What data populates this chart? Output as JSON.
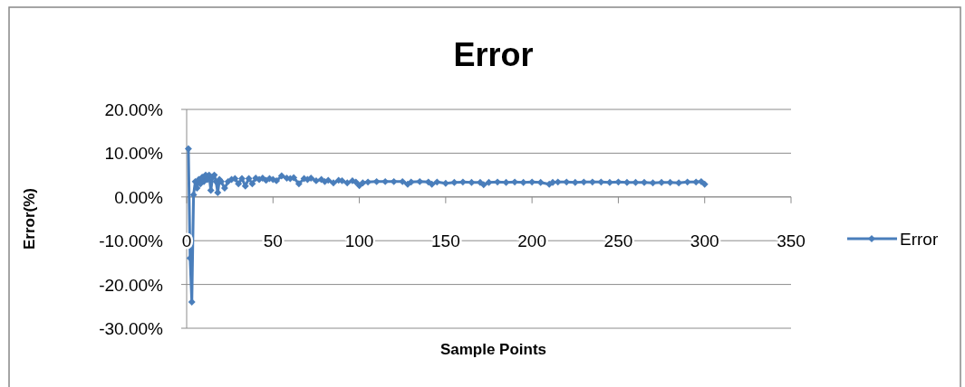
{
  "chart_data": {
    "type": "line",
    "title": "Error",
    "xlabel": "Sample Points",
    "ylabel": "Error(%)",
    "xlim": [
      0,
      350
    ],
    "xticks": [
      0,
      50,
      100,
      150,
      200,
      250,
      300,
      350
    ],
    "ylim": [
      -30,
      20
    ],
    "yticks": [
      {
        "value": -30,
        "label": "-30.00%"
      },
      {
        "value": -20,
        "label": "-20.00%"
      },
      {
        "value": -10,
        "label": "-10.00%"
      },
      {
        "value": 0,
        "label": "0.00%"
      },
      {
        "value": 10,
        "label": "10.00%"
      },
      {
        "value": 20,
        "label": "20.00%"
      }
    ],
    "grid": "y",
    "legend": "right",
    "marker": "diamond",
    "line_style": "solid",
    "series": [
      {
        "name": "Error",
        "color": "#4a7ebb",
        "x": [
          1,
          2,
          3,
          4,
          5,
          6,
          7,
          8,
          9,
          10,
          11,
          12,
          13,
          14,
          15,
          16,
          17,
          18,
          19,
          20,
          22,
          24,
          26,
          28,
          30,
          32,
          34,
          36,
          38,
          40,
          42,
          44,
          46,
          48,
          50,
          52,
          55,
          58,
          60,
          62,
          65,
          68,
          70,
          72,
          75,
          78,
          80,
          82,
          85,
          88,
          90,
          93,
          96,
          98,
          100,
          102,
          105,
          110,
          115,
          120,
          125,
          128,
          130,
          135,
          140,
          142,
          145,
          150,
          155,
          160,
          165,
          170,
          172,
          175,
          180,
          185,
          190,
          195,
          200,
          205,
          210,
          212,
          215,
          220,
          225,
          230,
          235,
          240,
          245,
          250,
          255,
          260,
          265,
          270,
          275,
          280,
          285,
          290,
          295,
          298,
          300
        ],
        "values": [
          11,
          -14,
          -24,
          0.5,
          3.5,
          2,
          4,
          3,
          4.5,
          3.5,
          5,
          4,
          5,
          1.5,
          4.5,
          5,
          3.5,
          1,
          4,
          3.5,
          2,
          3.5,
          4,
          4.2,
          3,
          4.2,
          2.5,
          4.2,
          3,
          4.3,
          4,
          4.3,
          3.8,
          4.2,
          4,
          3.7,
          4.8,
          4.3,
          4.2,
          4.4,
          3,
          4.2,
          4,
          4.3,
          3.7,
          4,
          3.5,
          3.8,
          3.2,
          3.8,
          3.7,
          3.2,
          3.7,
          3.4,
          2.6,
          3.2,
          3.4,
          3.5,
          3.5,
          3.5,
          3.5,
          2.9,
          3.4,
          3.5,
          3.4,
          2.9,
          3.4,
          3.1,
          3.3,
          3.4,
          3.3,
          3.3,
          2.8,
          3.3,
          3.4,
          3.3,
          3.4,
          3.3,
          3.4,
          3.3,
          2.9,
          3.3,
          3.4,
          3.4,
          3.3,
          3.4,
          3.4,
          3.4,
          3.3,
          3.4,
          3.3,
          3.3,
          3.3,
          3.2,
          3.3,
          3.3,
          3.2,
          3.4,
          3.4,
          3.5,
          2.9
        ]
      }
    ]
  }
}
